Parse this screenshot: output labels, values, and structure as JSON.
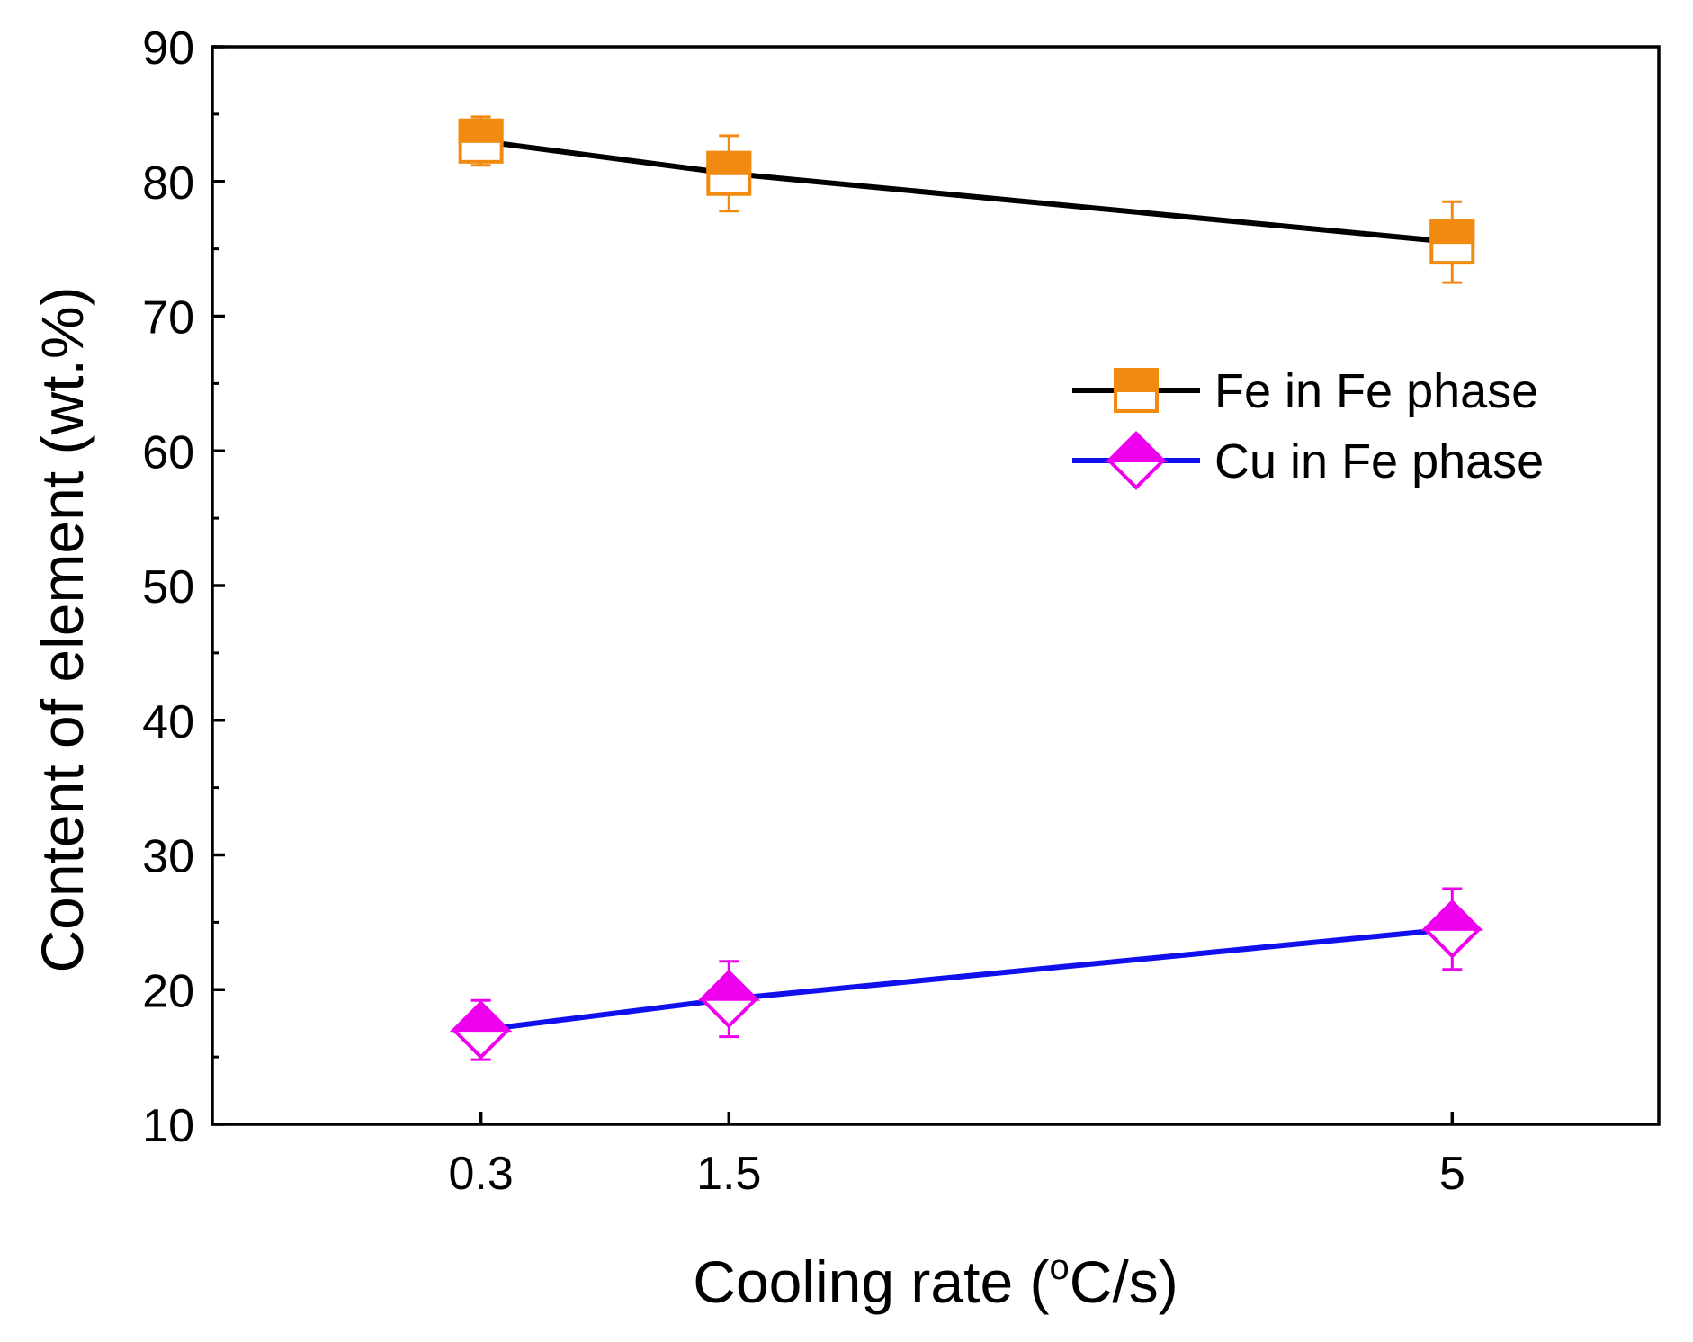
{
  "chart_data": {
    "type": "line",
    "title": "",
    "xlabel": "Cooling rate (°C/s)",
    "xlabel_parts": {
      "pre": "Cooling rate (",
      "sup": "o",
      "post": "C/s)"
    },
    "ylabel": "Content of element (wt.%)",
    "categories": [
      "0.3",
      "1.5",
      "5"
    ],
    "x": [
      0.3,
      1.5,
      5
    ],
    "xlim": [
      -1.0,
      6.0
    ],
    "ylim": [
      10,
      90
    ],
    "yticks": [
      10,
      20,
      30,
      40,
      50,
      60,
      70,
      80,
      90
    ],
    "grid": false,
    "legend_position": "upper-right",
    "series": [
      {
        "name": "Fe in Fe phase",
        "values": [
          83.0,
          80.6,
          75.5
        ],
        "errors": [
          1.8,
          2.8,
          3.0
        ],
        "line_color": "#000000",
        "marker": "square-half-filled",
        "marker_color": "#F28A10"
      },
      {
        "name": "Cu in Fe phase",
        "values": [
          17.0,
          19.3,
          24.5
        ],
        "errors": [
          2.2,
          2.8,
          3.0
        ],
        "line_color": "#1010EE",
        "marker": "diamond-half-filled",
        "marker_color": "#EE00EE"
      }
    ]
  }
}
